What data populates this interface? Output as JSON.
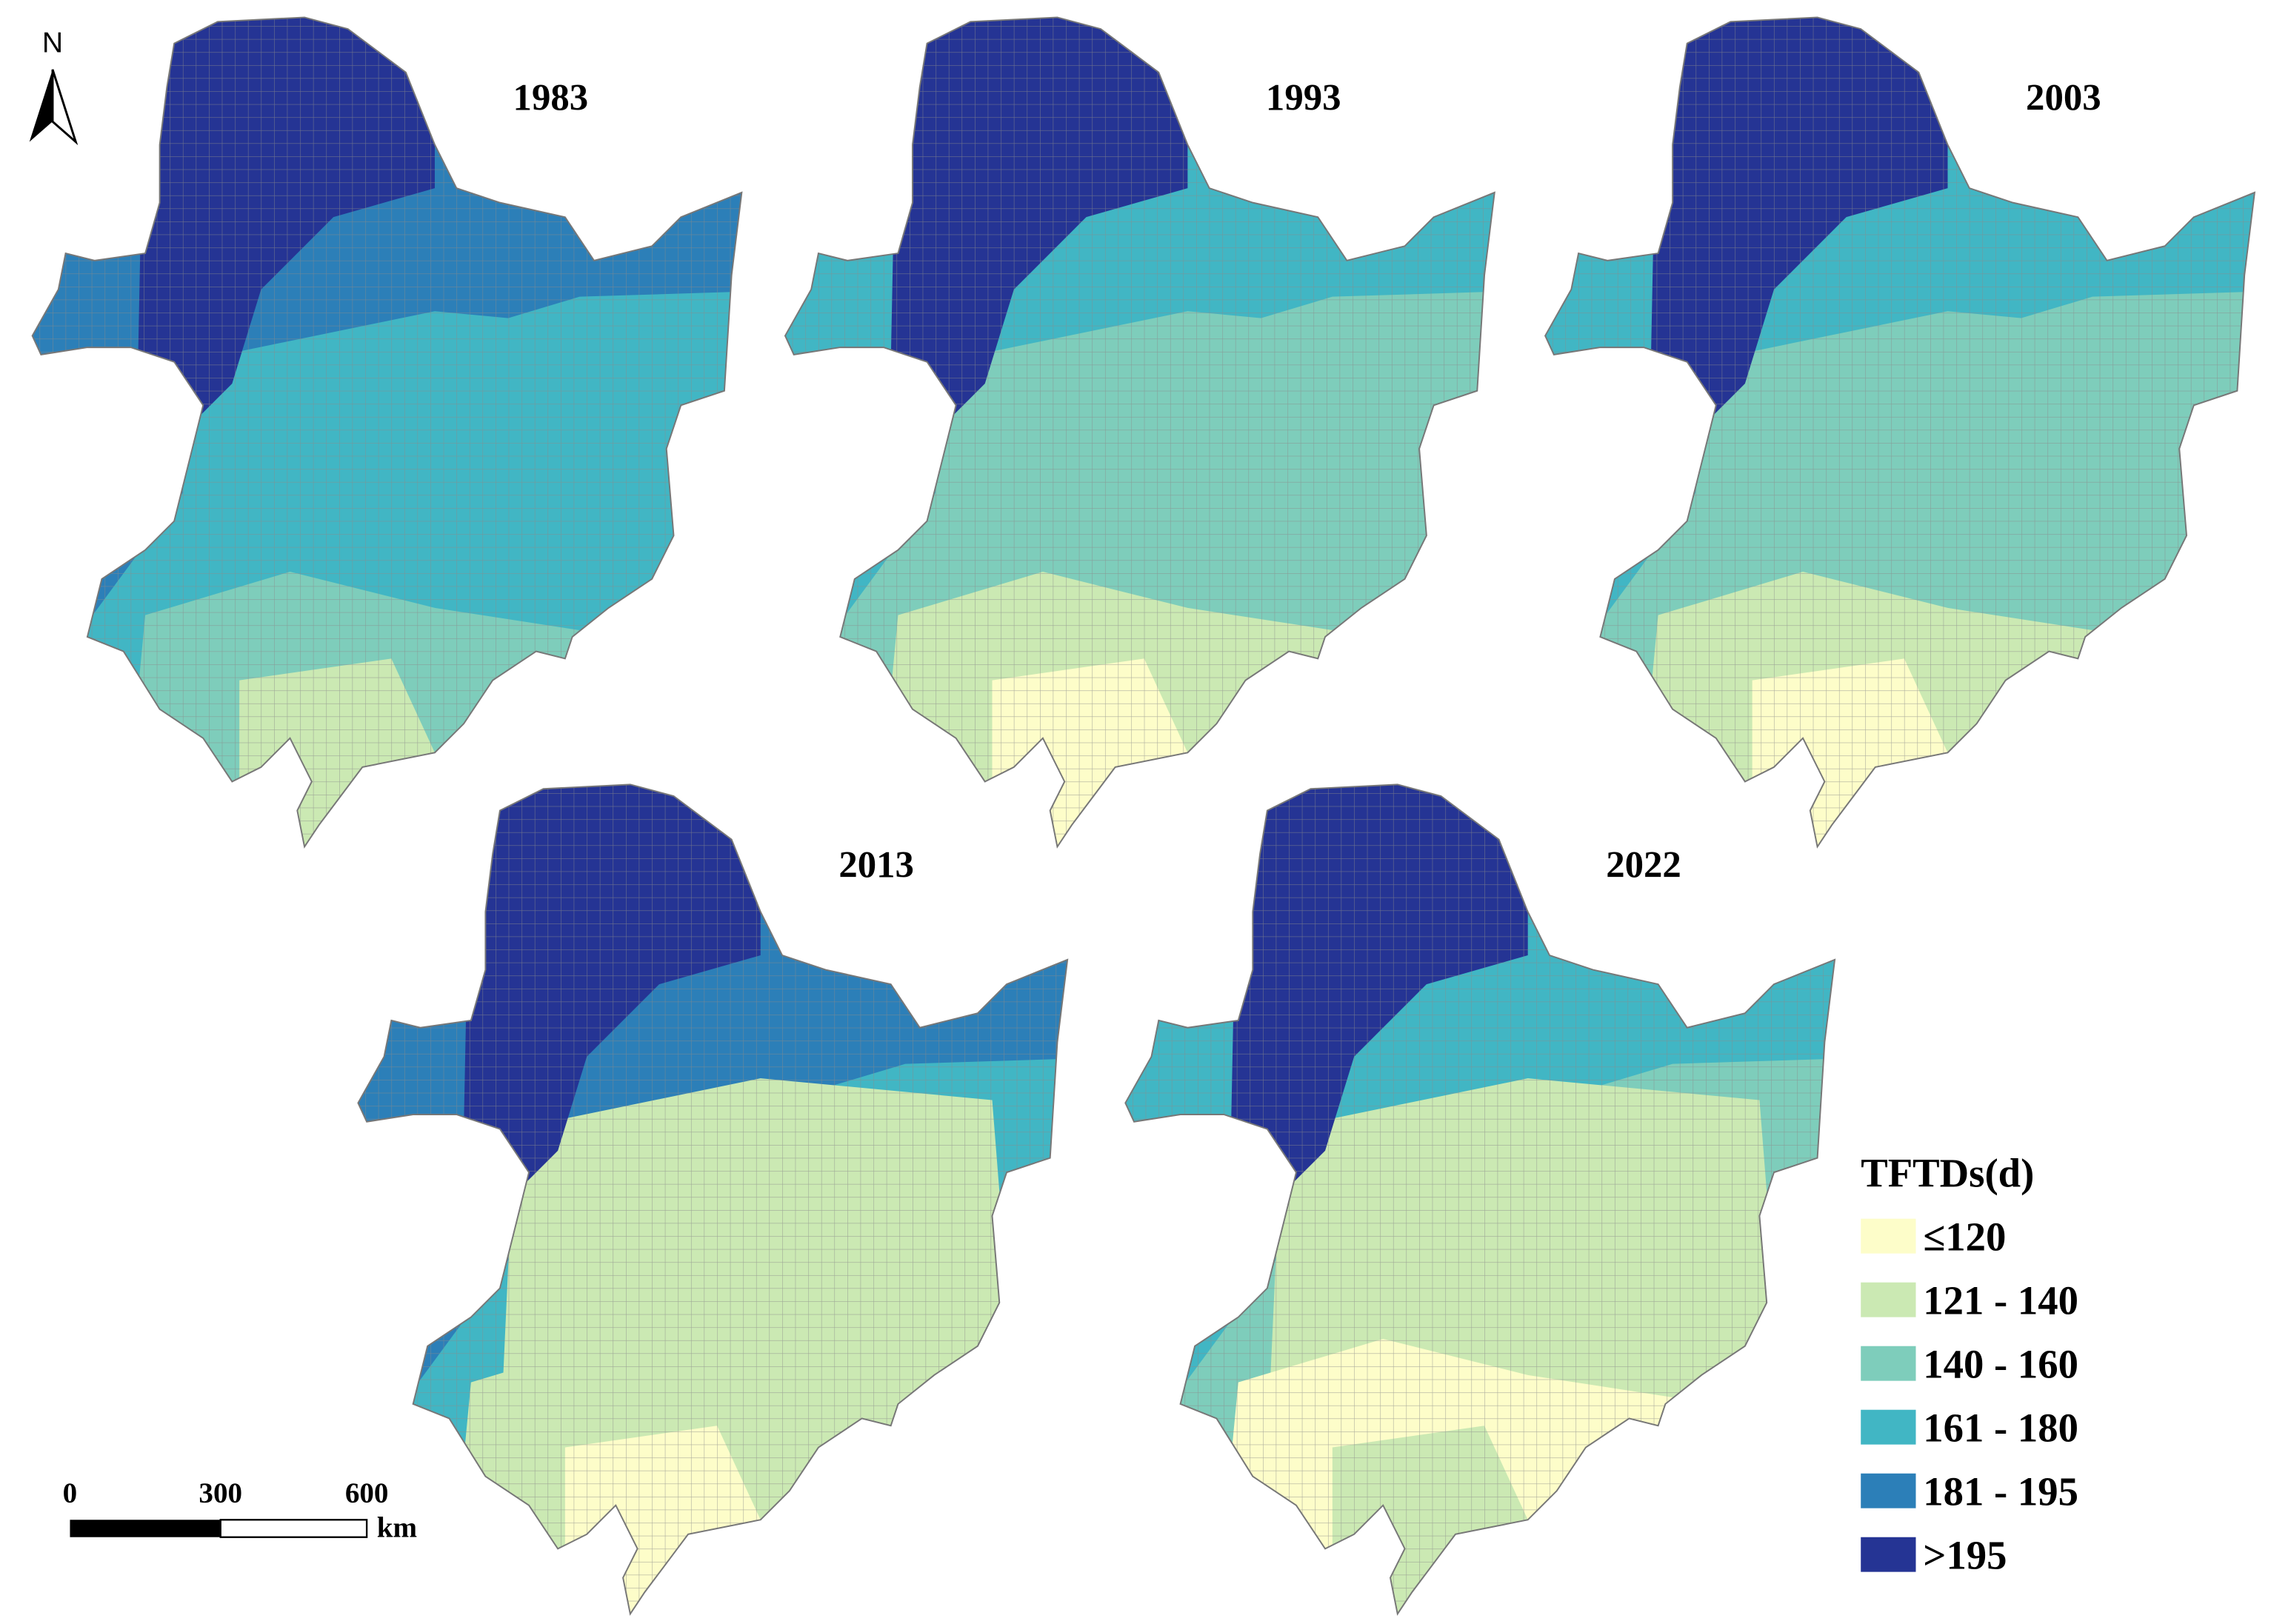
{
  "north": "N",
  "maps": [
    {
      "year": "1983"
    },
    {
      "year": "1993"
    },
    {
      "year": "2003"
    },
    {
      "year": "2013"
    },
    {
      "year": "2022"
    }
  ],
  "legend": {
    "title": "TFTDs(d)",
    "classes": [
      {
        "label": "≤120",
        "color": "#fdfdc9"
      },
      {
        "label": "121 - 140",
        "color": "#cbe9b3"
      },
      {
        "label": "140 - 160",
        "color": "#7ecdbb"
      },
      {
        "label": "161 - 180",
        "color": "#41b6c4"
      },
      {
        "label": "181 - 195",
        "color": "#2c7fb8"
      },
      {
        "label": ">195",
        "color": "#253494"
      }
    ]
  },
  "scale_bar": {
    "labels": [
      "0",
      "300",
      "600"
    ],
    "unit": "km"
  }
}
